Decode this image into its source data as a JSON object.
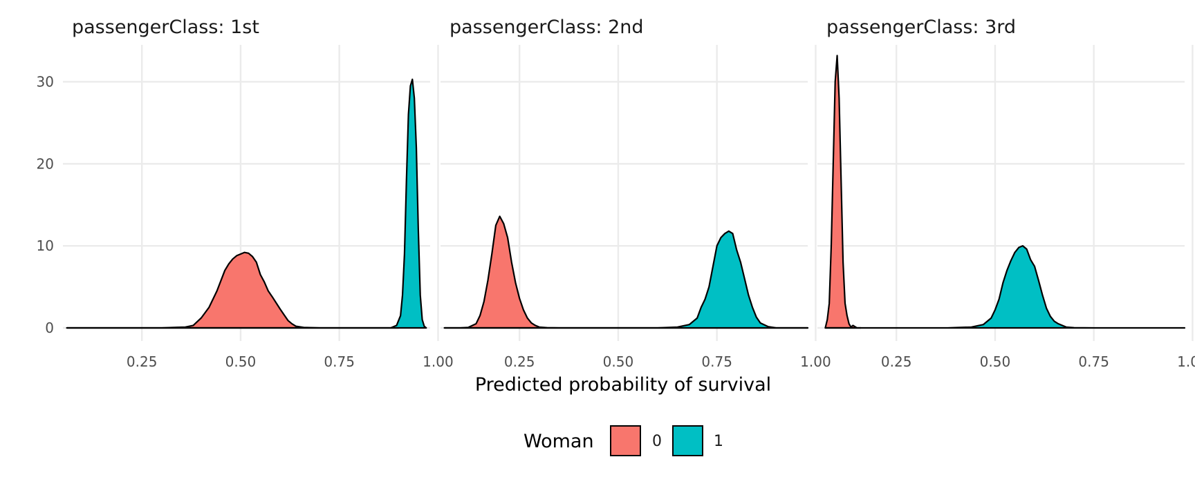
{
  "chart_data": {
    "type": "area",
    "x_axis": {
      "label": "Predicted probability of survival",
      "range": [
        0.05,
        0.98
      ],
      "ticks": [
        0.25,
        0.5,
        0.75,
        1.0
      ],
      "tick_labels": [
        "0.25",
        "0.50",
        "0.75",
        "1.00"
      ]
    },
    "y_axis": {
      "label": "",
      "range": [
        -1.6,
        34.5
      ],
      "ticks": [
        0,
        10,
        20,
        30
      ],
      "tick_labels": [
        "0",
        "10",
        "20",
        "30"
      ]
    },
    "grid": true,
    "legend": {
      "title": "Woman",
      "position": "bottom",
      "entries": [
        {
          "label": "0",
          "color": "#F8766D"
        },
        {
          "label": "1",
          "color": "#00BFC4"
        }
      ]
    },
    "facets": [
      {
        "title": "passengerClass: 1st",
        "series": [
          {
            "group": "0",
            "color": "#F8766D",
            "x": [
              0.06,
              0.3,
              0.36,
              0.38,
              0.4,
              0.42,
              0.44,
              0.46,
              0.47,
              0.48,
              0.49,
              0.5,
              0.51,
              0.52,
              0.53,
              0.54,
              0.55,
              0.56,
              0.57,
              0.58,
              0.6,
              0.61,
              0.62,
              0.63,
              0.64,
              0.66,
              0.7,
              0.9
            ],
            "y": [
              0,
              0,
              0.1,
              0.3,
              1.2,
              2.5,
              4.5,
              7.0,
              7.8,
              8.4,
              8.8,
              9.0,
              9.2,
              9.1,
              8.7,
              8.0,
              6.5,
              5.6,
              4.5,
              3.8,
              2.3,
              1.6,
              0.9,
              0.5,
              0.2,
              0.05,
              0,
              0
            ]
          },
          {
            "group": "1",
            "color": "#00BFC4",
            "x": [
              0.06,
              0.88,
              0.895,
              0.905,
              0.91,
              0.915,
              0.92,
              0.925,
              0.93,
              0.935,
              0.94,
              0.945,
              0.95,
              0.955,
              0.96,
              0.965,
              0.97
            ],
            "y": [
              0,
              0,
              0.3,
              1.5,
              4.0,
              9.0,
              18.0,
              26.0,
              29.5,
              30.3,
              28.0,
              22.0,
              12.0,
              4.0,
              1.0,
              0.2,
              0
            ]
          }
        ]
      },
      {
        "title": "passengerClass: 2nd",
        "series": [
          {
            "group": "0",
            "color": "#F8766D",
            "x": [
              0.06,
              0.1,
              0.12,
              0.14,
              0.15,
              0.16,
              0.17,
              0.18,
              0.19,
              0.2,
              0.21,
              0.22,
              0.23,
              0.24,
              0.25,
              0.26,
              0.27,
              0.28,
              0.29,
              0.3,
              0.32,
              0.35,
              0.5,
              0.7,
              0.98
            ],
            "y": [
              0,
              0,
              0.05,
              0.5,
              1.5,
              3.2,
              5.8,
              9.0,
              12.5,
              13.6,
              12.7,
              11.0,
              8.0,
              5.5,
              3.6,
              2.2,
              1.2,
              0.6,
              0.3,
              0.1,
              0.02,
              0,
              0,
              0,
              0
            ]
          },
          {
            "group": "1",
            "color": "#00BFC4",
            "x": [
              0.06,
              0.6,
              0.65,
              0.68,
              0.7,
              0.71,
              0.72,
              0.73,
              0.74,
              0.75,
              0.76,
              0.77,
              0.78,
              0.79,
              0.8,
              0.81,
              0.82,
              0.83,
              0.84,
              0.85,
              0.86,
              0.88,
              0.9,
              0.98
            ],
            "y": [
              0,
              0,
              0.1,
              0.4,
              1.2,
              2.5,
              3.5,
              5.0,
              7.5,
              10.0,
              11.0,
              11.5,
              11.8,
              11.5,
              9.5,
              8.0,
              6.0,
              4.0,
              2.5,
              1.3,
              0.6,
              0.15,
              0,
              0
            ]
          }
        ]
      },
      {
        "title": "passengerClass: 3rd",
        "series": [
          {
            "group": "0",
            "color": "#F8766D",
            "x": [
              0.07,
              0.075,
              0.08,
              0.085,
              0.09,
              0.095,
              0.1,
              0.105,
              0.11,
              0.115,
              0.12,
              0.125,
              0.13,
              0.135,
              0.14,
              0.15,
              0.16
            ],
            "y": [
              0,
              1.0,
              3.0,
              10.0,
              20.0,
              30.0,
              33.2,
              28.0,
              18.0,
              8.0,
              3.0,
              1.5,
              0.5,
              0.1,
              0.3,
              0,
              0
            ]
          },
          {
            "group": "1",
            "color": "#00BFC4",
            "x": [
              0.07,
              0.38,
              0.44,
              0.47,
              0.49,
              0.5,
              0.51,
              0.52,
              0.53,
              0.54,
              0.55,
              0.56,
              0.57,
              0.58,
              0.59,
              0.6,
              0.61,
              0.62,
              0.63,
              0.64,
              0.65,
              0.66,
              0.68,
              0.7,
              0.75,
              0.98
            ],
            "y": [
              0,
              0,
              0.1,
              0.4,
              1.2,
              2.2,
              3.5,
              5.5,
              7.0,
              8.2,
              9.2,
              9.8,
              10.0,
              9.6,
              8.3,
              7.5,
              5.8,
              4.0,
              2.4,
              1.4,
              0.8,
              0.5,
              0.1,
              0.02,
              0,
              0
            ]
          }
        ]
      }
    ]
  }
}
